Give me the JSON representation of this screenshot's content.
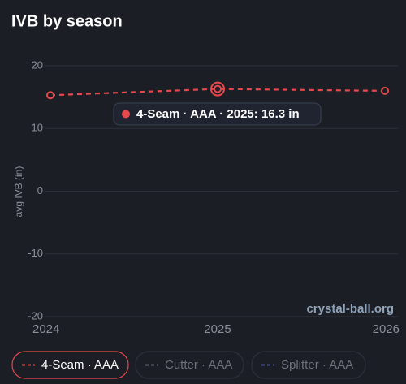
{
  "chart_data": {
    "type": "line",
    "title": "IVB by season",
    "ylabel": "avg IVB (in)",
    "x": [
      2024,
      2025,
      2026
    ],
    "series": [
      {
        "name": "4-Seam · AAA",
        "color": "#e5484d",
        "values": [
          15.3,
          16.3,
          16.0
        ],
        "hidden": false
      },
      {
        "name": "Cutter · AAA",
        "color": "#8a8f98",
        "values": [
          null,
          null,
          null
        ],
        "hidden": true
      },
      {
        "name": "Splitter · AAA",
        "color": "#6f7bd8",
        "values": [
          null,
          null,
          null
        ],
        "hidden": true
      }
    ],
    "xlim": [
      2024,
      2026
    ],
    "xticks": [
      2024,
      2025,
      2026
    ],
    "ylim": [
      -20,
      20
    ],
    "yticks": [
      -20,
      -10,
      0,
      10,
      20
    ],
    "grid": true,
    "tooltip": {
      "text": "4-Seam · AAA · 2025: 16.3 in",
      "x": 2025
    },
    "watermark": "crystal-ball.org"
  }
}
